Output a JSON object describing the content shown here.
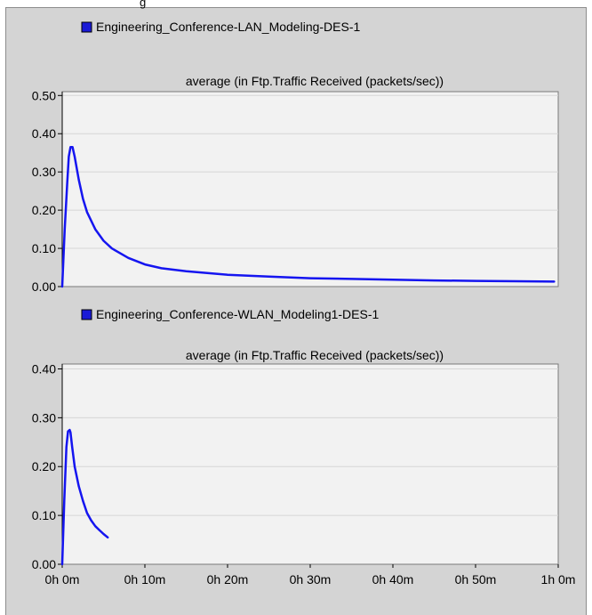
{
  "colors": {
    "panel_bg": "#d4d4d4",
    "plot_bg": "#f2f2f2",
    "grid": "#d6d6d6",
    "series": "#1515f0",
    "legend_swatch": "#1a1ad6",
    "axis": "#000000"
  },
  "chart_data": [
    {
      "type": "line",
      "legend": "Engineering_Conference-LAN_Modeling-DES-1",
      "title": "average (in Ftp.Traffic Received (packets/sec))",
      "xlabel": "",
      "ylabel": "",
      "xlim_minutes": [
        0,
        60
      ],
      "ylim": [
        0,
        0.51
      ],
      "yticks": [
        "0.50",
        "0.40",
        "0.30",
        "0.20",
        "0.10",
        "0.00"
      ],
      "ytick_values": [
        0.5,
        0.4,
        0.3,
        0.2,
        0.1,
        0.0
      ],
      "grid": true,
      "series": [
        {
          "color": "#1515f0",
          "x_minutes": [
            0,
            0.3,
            0.6,
            0.8,
            1.0,
            1.25,
            1.5,
            2,
            2.5,
            3,
            4,
            5,
            6,
            8,
            10,
            12,
            15,
            20,
            25,
            30,
            35,
            40,
            45,
            50,
            55,
            59.5
          ],
          "values": [
            0.0,
            0.15,
            0.27,
            0.34,
            0.365,
            0.365,
            0.34,
            0.28,
            0.23,
            0.195,
            0.15,
            0.12,
            0.1,
            0.075,
            0.058,
            0.048,
            0.04,
            0.031,
            0.026,
            0.022,
            0.02,
            0.018,
            0.016,
            0.015,
            0.014,
            0.013
          ]
        }
      ]
    },
    {
      "type": "line",
      "legend": "Engineering_Conference-WLAN_Modeling1-DES-1",
      "title": "average (in Ftp.Traffic Received (packets/sec))",
      "xlabel": "",
      "ylabel": "",
      "xlim_minutes": [
        0,
        60
      ],
      "ylim": [
        0,
        0.41
      ],
      "yticks": [
        "0.40",
        "0.30",
        "0.20",
        "0.10",
        "0.00"
      ],
      "ytick_values": [
        0.4,
        0.3,
        0.2,
        0.1,
        0.0
      ],
      "xticks": [
        "0h 0m",
        "0h 10m",
        "0h 20m",
        "0h 30m",
        "0h 40m",
        "0h 50m",
        "1h 0m"
      ],
      "xtick_values": [
        0,
        10,
        20,
        30,
        40,
        50,
        60
      ],
      "grid": true,
      "series": [
        {
          "color": "#1515f0",
          "x_minutes": [
            0,
            0.25,
            0.5,
            0.7,
            0.9,
            1.0,
            1.2,
            1.5,
            2,
            2.5,
            3,
            3.5,
            4,
            4.5,
            5,
            5.5
          ],
          "values": [
            0.0,
            0.13,
            0.24,
            0.272,
            0.275,
            0.27,
            0.24,
            0.2,
            0.16,
            0.13,
            0.105,
            0.09,
            0.078,
            0.07,
            0.062,
            0.055
          ]
        }
      ]
    }
  ]
}
